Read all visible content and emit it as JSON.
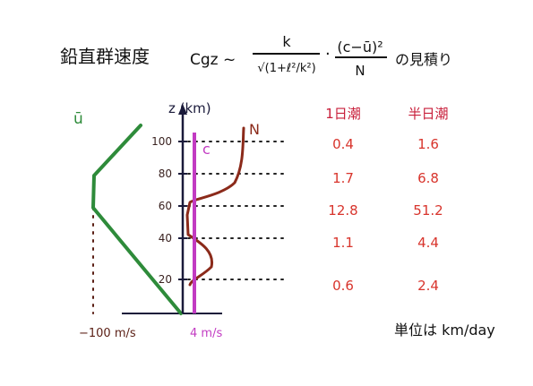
{
  "title": {
    "prefix": "鉛直群速度",
    "symbol": "Cgz ~",
    "fraction1_numerator": "k",
    "fraction1_denominator": "√(1+ℓ²/k²)",
    "dot": "·",
    "fraction2_numerator": "(c−ū)²",
    "fraction2_denominator": "N",
    "suffix": "の見積り"
  },
  "profile": {
    "z_axis_label": "z (km)",
    "ticks": [
      "100",
      "80",
      "60",
      "40",
      "20"
    ],
    "u_label": "ū",
    "c_label": "c",
    "n_label": "N",
    "u_bottom_label": "−100 m/s",
    "c_bottom_label": "4 m/s"
  },
  "table": {
    "headers": [
      "1日潮",
      "半日潮"
    ],
    "rows": [
      [
        "0.4",
        "1.6"
      ],
      [
        "1.7",
        "6.8"
      ],
      [
        "12.8",
        "51.2"
      ],
      [
        "1.1",
        "4.4"
      ],
      [
        "0.6",
        "2.4"
      ]
    ],
    "unit_note": "単位は km/day"
  },
  "colors": {
    "u_line": "#2e8b3a",
    "c_line": "#c23bc2",
    "n_line": "#8b2a1a",
    "axis": "#1a1a3a",
    "table_text": "#d8342c",
    "header_text": "#c81e3a",
    "tick_text": "#3a2220",
    "ink": "#111111"
  }
}
